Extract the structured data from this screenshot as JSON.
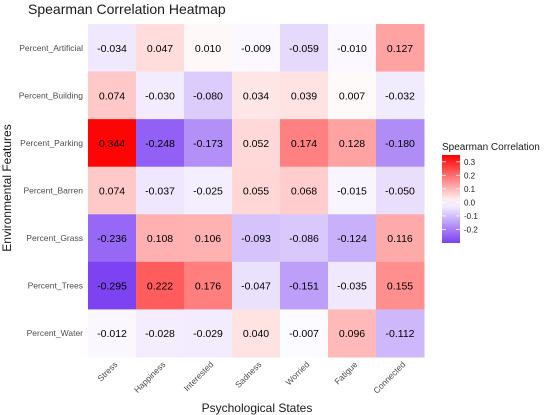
{
  "chart_data": {
    "type": "heatmap",
    "title": "Spearman Correlation Heatmap",
    "xlabel": "Psychological States",
    "ylabel": "Environmental Features",
    "x_categories": [
      "Stress",
      "Happiness",
      "Interested",
      "Sadness",
      "Worried",
      "Fatigue",
      "Connected"
    ],
    "y_categories": [
      "Percent_Artificial",
      "Percent_Building",
      "Percent_Parking",
      "Percent_Barren",
      "Percent_Grass",
      "Percent_Trees",
      "Percent_Water"
    ],
    "values": [
      [
        -0.034,
        0.047,
        0.01,
        -0.009,
        -0.059,
        -0.01,
        0.127
      ],
      [
        0.074,
        -0.03,
        -0.08,
        0.034,
        0.039,
        0.007,
        -0.032
      ],
      [
        0.344,
        -0.248,
        -0.173,
        0.052,
        0.174,
        0.128,
        -0.18
      ],
      [
        0.074,
        -0.037,
        -0.025,
        0.055,
        0.068,
        -0.015,
        -0.05
      ],
      [
        -0.236,
        0.108,
        0.106,
        -0.093,
        -0.086,
        -0.124,
        0.116
      ],
      [
        -0.295,
        0.222,
        0.176,
        -0.047,
        -0.151,
        -0.035,
        0.155
      ],
      [
        -0.012,
        -0.028,
        -0.029,
        0.04,
        -0.007,
        0.096,
        -0.112
      ]
    ],
    "value_labels": [
      [
        "-0.034",
        "0.047",
        "0.010",
        "-0.009",
        "-0.059",
        "-0.010",
        "0.127"
      ],
      [
        "0.074",
        "-0.030",
        "-0.080",
        "0.034",
        "0.039",
        "0.007",
        "-0.032"
      ],
      [
        "0.344",
        "-0.248",
        "-0.173",
        "0.052",
        "0.174",
        "0.128",
        "-0.180"
      ],
      [
        "0.074",
        "-0.037",
        "-0.025",
        "0.055",
        "0.068",
        "-0.015",
        "-0.050"
      ],
      [
        "-0.236",
        "0.108",
        "0.106",
        "-0.093",
        "-0.086",
        "-0.124",
        "0.116"
      ],
      [
        "-0.295",
        "0.222",
        "0.176",
        "-0.047",
        "-0.151",
        "-0.035",
        "0.155"
      ],
      [
        "-0.012",
        "-0.028",
        "-0.029",
        "0.040",
        "-0.007",
        "0.096",
        "-0.112"
      ]
    ],
    "legend": {
      "title": "Spearman Correlation",
      "ticks": [
        0.3,
        0.2,
        0.1,
        0.0,
        -0.1,
        -0.2
      ],
      "tick_labels": [
        "0.3",
        "0.2",
        "0.1",
        "0.0",
        "-0.1",
        "-0.2"
      ],
      "placement": "right"
    },
    "color_scale": {
      "low": "#7b3ff2",
      "mid": "#ffffff",
      "high": "#ff0000",
      "range": [
        -0.3,
        0.35
      ]
    },
    "grid": false
  }
}
